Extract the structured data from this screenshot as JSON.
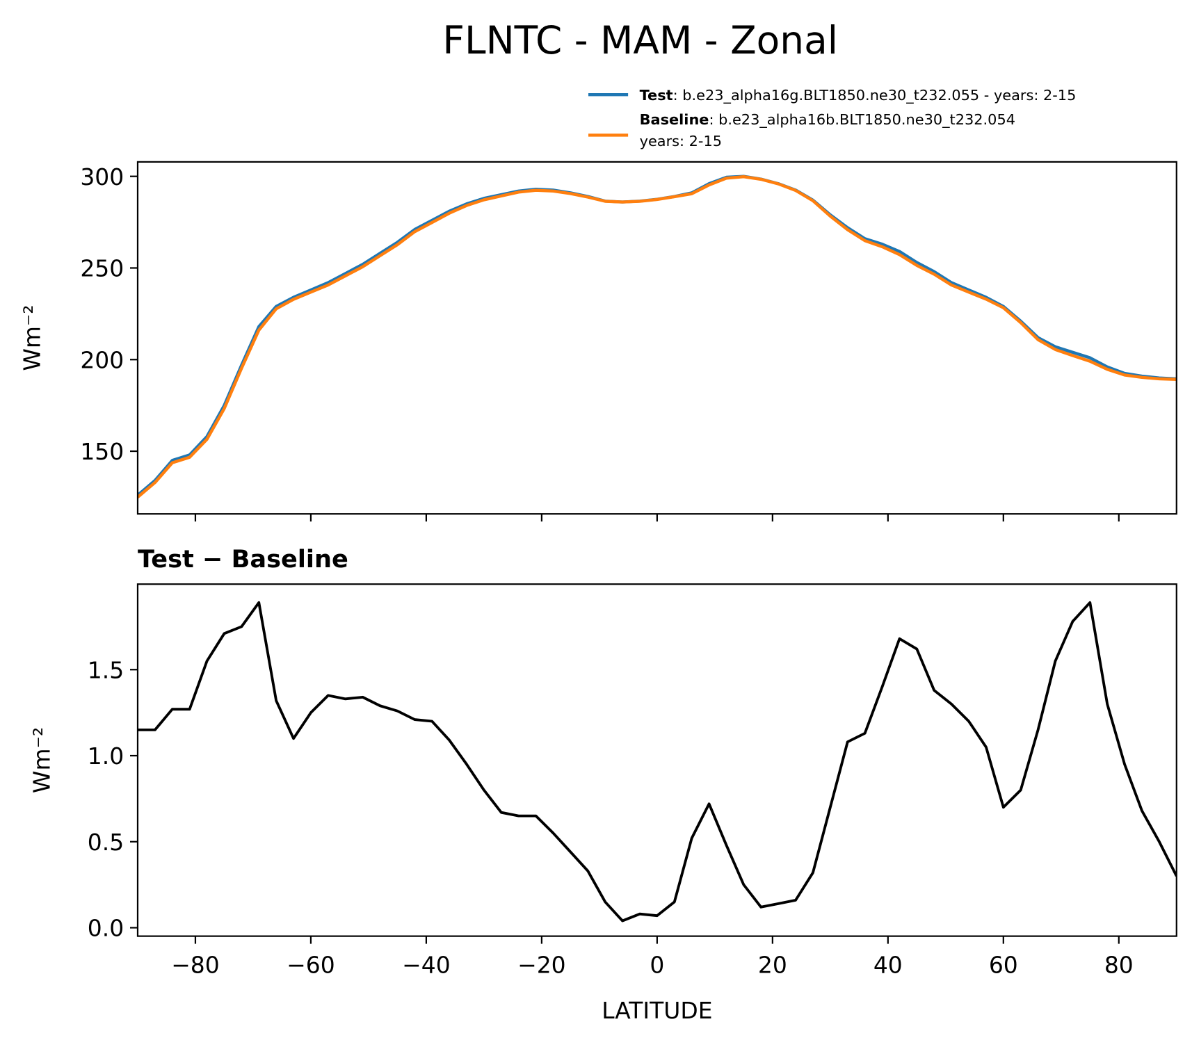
{
  "title": "FLNTC - MAM - Zonal",
  "chart_data": [
    {
      "type": "line",
      "ylabel": "Wm⁻²",
      "x": [
        -90,
        -87,
        -84,
        -81,
        -78,
        -75,
        -72,
        -69,
        -66,
        -63,
        -60,
        -57,
        -54,
        -51,
        -48,
        -45,
        -42,
        -39,
        -36,
        -33,
        -30,
        -27,
        -24,
        -21,
        -18,
        -15,
        -12,
        -9,
        -6,
        -3,
        0,
        3,
        6,
        9,
        12,
        15,
        18,
        21,
        24,
        27,
        30,
        33,
        36,
        39,
        42,
        45,
        48,
        51,
        54,
        57,
        60,
        63,
        66,
        69,
        72,
        75,
        78,
        81,
        84,
        87,
        90
      ],
      "series": [
        {
          "name": "Test",
          "description": [
            ": b.e23_alpha16g.BLT1850.ne30_t232.055 - years: 2-15"
          ],
          "color": "#1f77b4",
          "values": [
            126,
            134,
            145,
            148,
            158,
            175,
            197,
            218,
            229,
            234,
            238,
            242,
            247,
            252,
            258,
            264,
            271,
            276,
            281,
            285,
            288,
            290,
            292,
            293,
            292.5,
            291,
            289,
            286.5,
            286,
            286.5,
            287.5,
            289,
            291,
            296,
            299.5,
            300,
            298.5,
            296,
            292.5,
            287,
            279,
            272,
            266,
            263,
            259,
            253,
            248,
            242,
            238,
            234,
            229,
            221,
            212,
            207,
            204,
            201,
            196,
            192.5,
            191,
            190,
            189.5
          ]
        },
        {
          "name": "Baseline",
          "description": [
            ": b.e23_alpha16b.BLT1850.ne30_t232.054",
            "years: 2-15"
          ],
          "color": "#ff7f0e",
          "values": [
            124.9,
            132.9,
            143.7,
            146.7,
            156.5,
            173.3,
            195.3,
            216.1,
            227.7,
            232.9,
            236.8,
            240.7,
            245.7,
            250.7,
            256.7,
            262.7,
            269.8,
            274.8,
            279.9,
            284.1,
            287.2,
            289.3,
            291.4,
            292.4,
            292.0,
            290.6,
            288.7,
            286.4,
            286.0,
            286.4,
            287.4,
            288.9,
            290.5,
            295.3,
            299.0,
            299.8,
            298.4,
            295.9,
            292.3,
            286.7,
            278.3,
            270.9,
            264.9,
            261.6,
            257.3,
            251.4,
            246.6,
            240.7,
            236.8,
            233.0,
            228.3,
            220.2,
            210.9,
            205.5,
            202.2,
            199.1,
            194.7,
            191.6,
            190.3,
            189.5,
            189.2
          ]
        }
      ],
      "xlim": [
        -90,
        90
      ],
      "xticks": [
        -80,
        -60,
        -40,
        -20,
        0,
        20,
        40,
        60,
        80
      ],
      "xtick_labels": false,
      "ylim": [
        115.8,
        307.9
      ],
      "yticks": [
        150,
        200,
        250,
        300
      ],
      "grid": false
    },
    {
      "type": "line",
      "title": "Test − Baseline",
      "xlabel": "LATITUDE",
      "ylabel": "Wm⁻²",
      "x": [
        -90,
        -87,
        -84,
        -81,
        -78,
        -75,
        -72,
        -69,
        -66,
        -63,
        -60,
        -57,
        -54,
        -51,
        -48,
        -45,
        -42,
        -39,
        -36,
        -33,
        -30,
        -27,
        -24,
        -21,
        -18,
        -15,
        -12,
        -9,
        -6,
        -3,
        0,
        3,
        6,
        9,
        12,
        15,
        18,
        21,
        24,
        27,
        30,
        33,
        36,
        39,
        42,
        45,
        48,
        51,
        54,
        57,
        60,
        63,
        66,
        69,
        72,
        75,
        78,
        81,
        84,
        87,
        90
      ],
      "series": [
        {
          "color": "#000000",
          "values": [
            1.15,
            1.15,
            1.27,
            1.27,
            1.55,
            1.71,
            1.75,
            1.89,
            1.32,
            1.1,
            1.25,
            1.35,
            1.33,
            1.34,
            1.29,
            1.26,
            1.21,
            1.2,
            1.09,
            0.95,
            0.8,
            0.67,
            0.65,
            0.65,
            0.55,
            0.44,
            0.33,
            0.15,
            0.04,
            0.08,
            0.07,
            0.15,
            0.52,
            0.72,
            0.48,
            0.25,
            0.12,
            0.14,
            0.16,
            0.32,
            0.7,
            1.08,
            1.13,
            1.4,
            1.68,
            1.62,
            1.38,
            1.3,
            1.2,
            1.05,
            0.7,
            0.8,
            1.15,
            1.55,
            1.78,
            1.89,
            1.3,
            0.95,
            0.68,
            0.5,
            0.3
          ]
        }
      ],
      "xlim": [
        -90,
        90
      ],
      "xticks": [
        {
          "value": -80,
          "label": "−80"
        },
        {
          "value": -60,
          "label": "−60"
        },
        {
          "value": -40,
          "label": "−40"
        },
        {
          "value": -20,
          "label": "−20"
        },
        0,
        20,
        40,
        60,
        80
      ],
      "xtick_labels": true,
      "ylim": [
        -0.049,
        1.997
      ],
      "yticks": [
        {
          "value": 0,
          "label": "0.0"
        },
        0.5,
        {
          "value": 1,
          "label": "1.0"
        },
        1.5
      ],
      "grid": false
    }
  ]
}
